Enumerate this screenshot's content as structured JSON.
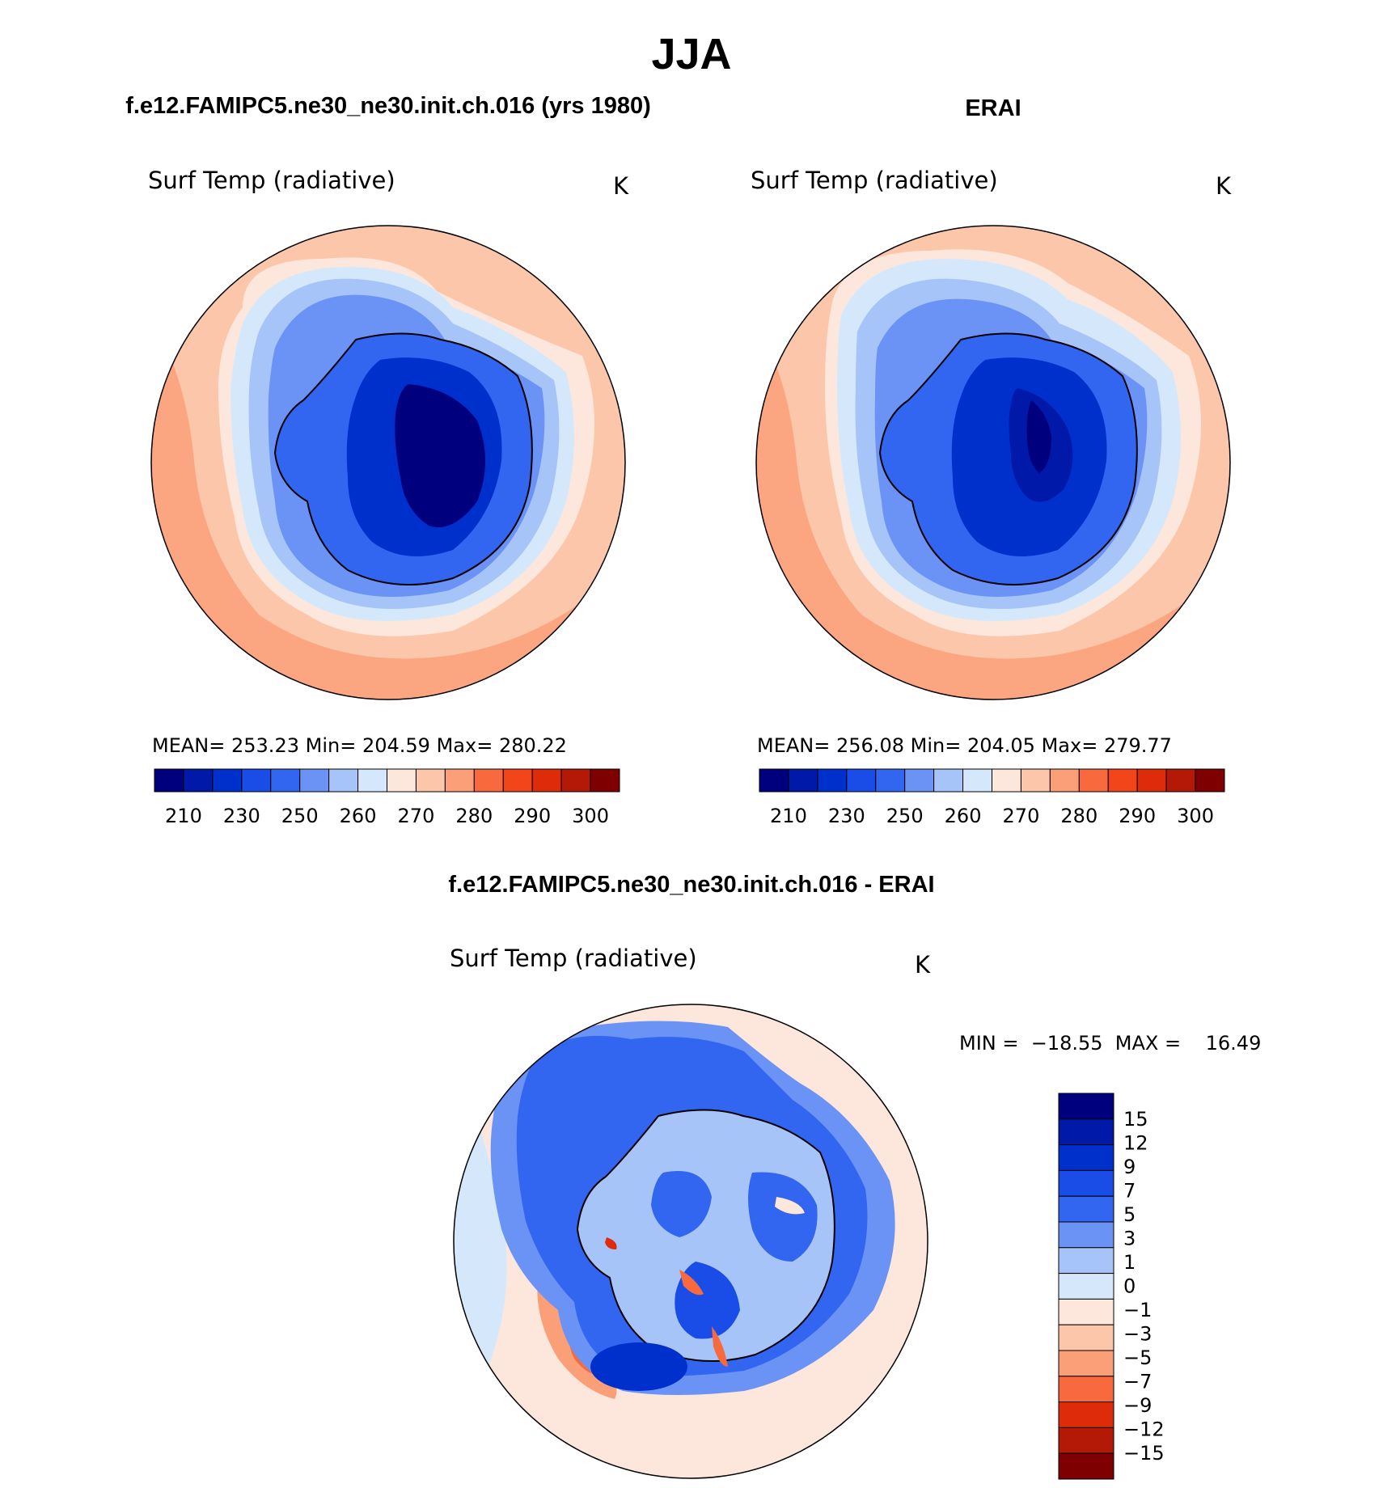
{
  "page": {
    "season_title": "JJA"
  },
  "panels": [
    {
      "id": "model",
      "header": "f.e12.FAMIPC5.ne30_ne30.init.ch.016 (yrs 1980)",
      "variable": "Surf Temp (radiative)",
      "units": "K",
      "stats": {
        "mean_label": "MEAN=",
        "mean": "253.23",
        "min_label": "Min=",
        "min": "204.59",
        "max_label": "Max=",
        "max": "280.22"
      }
    },
    {
      "id": "obs",
      "header": "ERAI",
      "variable": "Surf Temp (radiative)",
      "units": "K",
      "stats": {
        "mean_label": "MEAN=",
        "mean": "256.08",
        "min_label": "Min=",
        "min": "204.05",
        "max_label": "Max=",
        "max": "279.77"
      }
    }
  ],
  "diff": {
    "header": "f.e12.FAMIPC5.ne30_ne30.init.ch.016 - ERAI",
    "variable": "Surf Temp (radiative)",
    "units": "K",
    "minmax_text": "MIN =  −18.55  MAX =    16.49"
  },
  "abs_colorbar": {
    "colors": [
      "#00007f",
      "#0019a8",
      "#0030cc",
      "#1a4de8",
      "#3366f0",
      "#6b93f5",
      "#a6c4f7",
      "#d5e8fb",
      "#fde7dc",
      "#fcc6ab",
      "#fb9f79",
      "#f86a3e",
      "#f2451a",
      "#de2c0b",
      "#b31906",
      "#7f0000"
    ],
    "tick_labels": [
      "210",
      "230",
      "250",
      "260",
      "270",
      "280",
      "290",
      "300"
    ]
  },
  "diff_colorbar": {
    "colors": [
      "#00007f",
      "#0019a8",
      "#0030cc",
      "#1a4de8",
      "#3366f0",
      "#6b93f5",
      "#a6c4f7",
      "#d5e8fb",
      "#fde7dc",
      "#fcc6ab",
      "#fb9f79",
      "#f86a3e",
      "#de2c0b",
      "#b31906",
      "#7f0000"
    ],
    "tick_labels": [
      "15",
      "12",
      "9",
      "7",
      "5",
      "3",
      "1",
      "0",
      "−1",
      "−3",
      "−5",
      "−7",
      "−9",
      "−12",
      "−15"
    ]
  },
  "chart_data": [
    {
      "type": "heatmap",
      "projection": "south-polar-stereographic",
      "title": "Surf Temp (radiative)",
      "units": "K",
      "levels": [
        210,
        220,
        230,
        240,
        250,
        255,
        260,
        265,
        270,
        275,
        280,
        285,
        290,
        295,
        300
      ],
      "mean": 253.23,
      "min": 204.59,
      "max": 280.22
    },
    {
      "type": "heatmap",
      "projection": "south-polar-stereographic",
      "title": "Surf Temp (radiative)",
      "units": "K",
      "levels": [
        210,
        220,
        230,
        240,
        250,
        255,
        260,
        265,
        270,
        275,
        280,
        285,
        290,
        295,
        300
      ],
      "mean": 256.08,
      "min": 204.05,
      "max": 279.77
    },
    {
      "type": "heatmap",
      "projection": "south-polar-stereographic",
      "title": "Surf Temp (radiative)",
      "units": "K",
      "levels": [
        -15,
        -12,
        -9,
        -7,
        -5,
        -3,
        -1,
        0,
        1,
        3,
        5,
        7,
        9,
        12,
        15
      ],
      "min": -18.55,
      "max": 16.49
    }
  ]
}
